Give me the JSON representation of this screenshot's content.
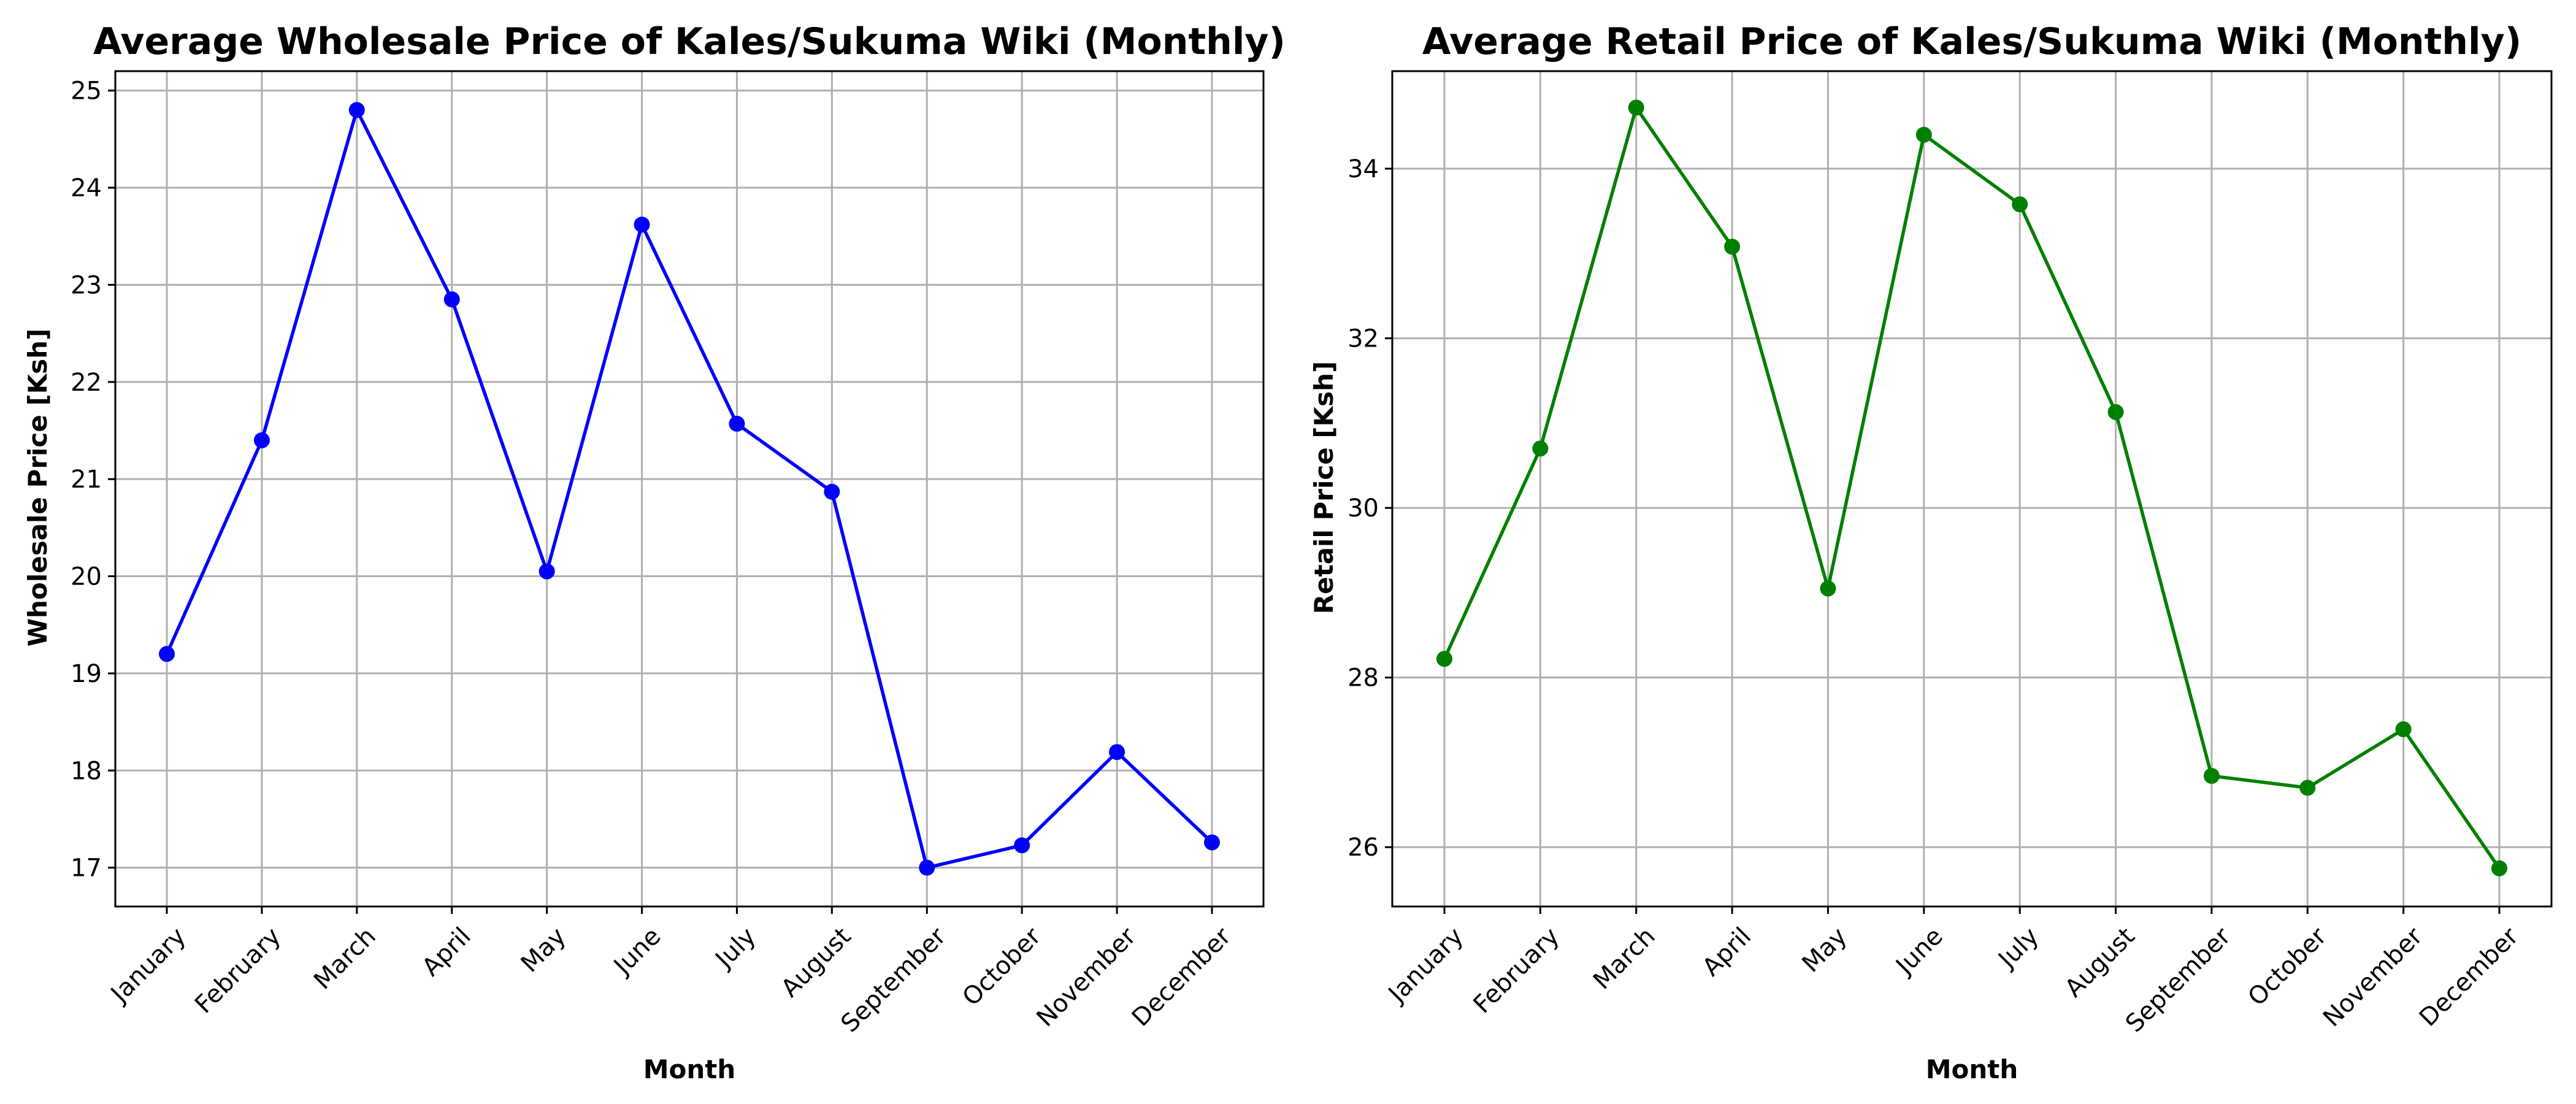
{
  "chart_data": [
    {
      "type": "line",
      "title": "Average Wholesale Price of Kales/Sukuma Wiki (Monthly)",
      "xlabel": "Month",
      "ylabel": "Wholesale Price [Ksh]",
      "categories": [
        "January",
        "February",
        "March",
        "April",
        "May",
        "June",
        "July",
        "August",
        "September",
        "October",
        "November",
        "December"
      ],
      "series": [
        {
          "color": "#0000ff",
          "values": [
            19.2,
            21.4,
            24.8,
            22.85,
            20.05,
            23.62,
            21.57,
            20.87,
            17.0,
            17.23,
            18.19,
            17.26
          ]
        }
      ],
      "ylim": [
        16.6,
        25.2
      ],
      "yticks": [
        17,
        18,
        19,
        20,
        21,
        22,
        23,
        24,
        25
      ],
      "grid": true,
      "legend": "none"
    },
    {
      "type": "line",
      "title": "Average Retail Price of Kales/Sukuma Wiki (Monthly)",
      "xlabel": "Month",
      "ylabel": "Retail Price [Ksh]",
      "categories": [
        "January",
        "February",
        "March",
        "April",
        "May",
        "June",
        "July",
        "August",
        "September",
        "October",
        "November",
        "December"
      ],
      "series": [
        {
          "color": "#008000",
          "values": [
            28.22,
            30.7,
            34.72,
            33.08,
            29.05,
            34.4,
            33.58,
            31.13,
            26.84,
            26.7,
            27.39,
            25.75
          ]
        }
      ],
      "ylim": [
        25.3,
        35.15
      ],
      "yticks": [
        26,
        28,
        30,
        32,
        34
      ],
      "grid": true,
      "legend": "none"
    }
  ]
}
